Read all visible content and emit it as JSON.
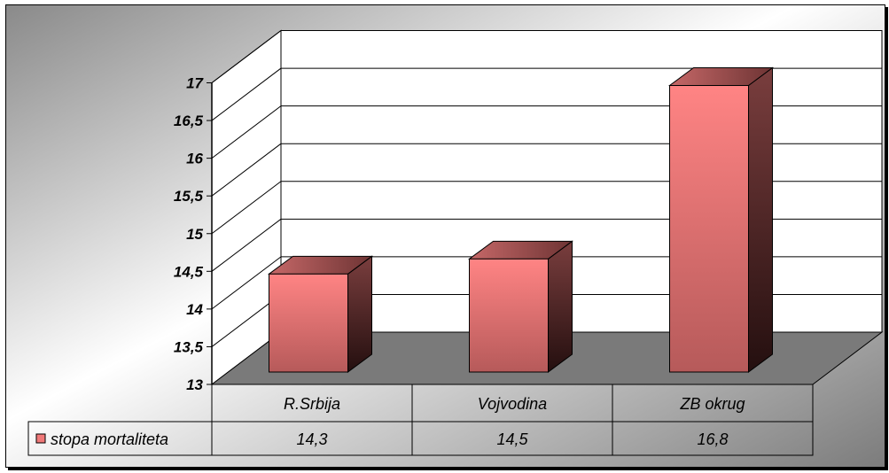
{
  "chart_data": {
    "type": "bar",
    "style": "3d-column-with-data-table",
    "categories": [
      "R.Srbija",
      "Vojvodina",
      "ZB okrug"
    ],
    "series": [
      {
        "name": "stopa mortaliteta",
        "values": [
          14.3,
          14.5,
          16.8
        ],
        "labels": [
          "14,3",
          "14,5",
          "16,8"
        ],
        "color": "#f07878"
      }
    ],
    "ylim": [
      13,
      17
    ],
    "y_ticks": [
      "13",
      "13,5",
      "14",
      "14,5",
      "15",
      "15,5",
      "16",
      "16,5",
      "17"
    ],
    "gridlines": true,
    "legend": "data-table-key",
    "colors": {
      "bar_front": "#f07878",
      "bar_dark": "#3a1a1a",
      "floor": "#7a7a7a",
      "wall": "#ffffff"
    }
  }
}
